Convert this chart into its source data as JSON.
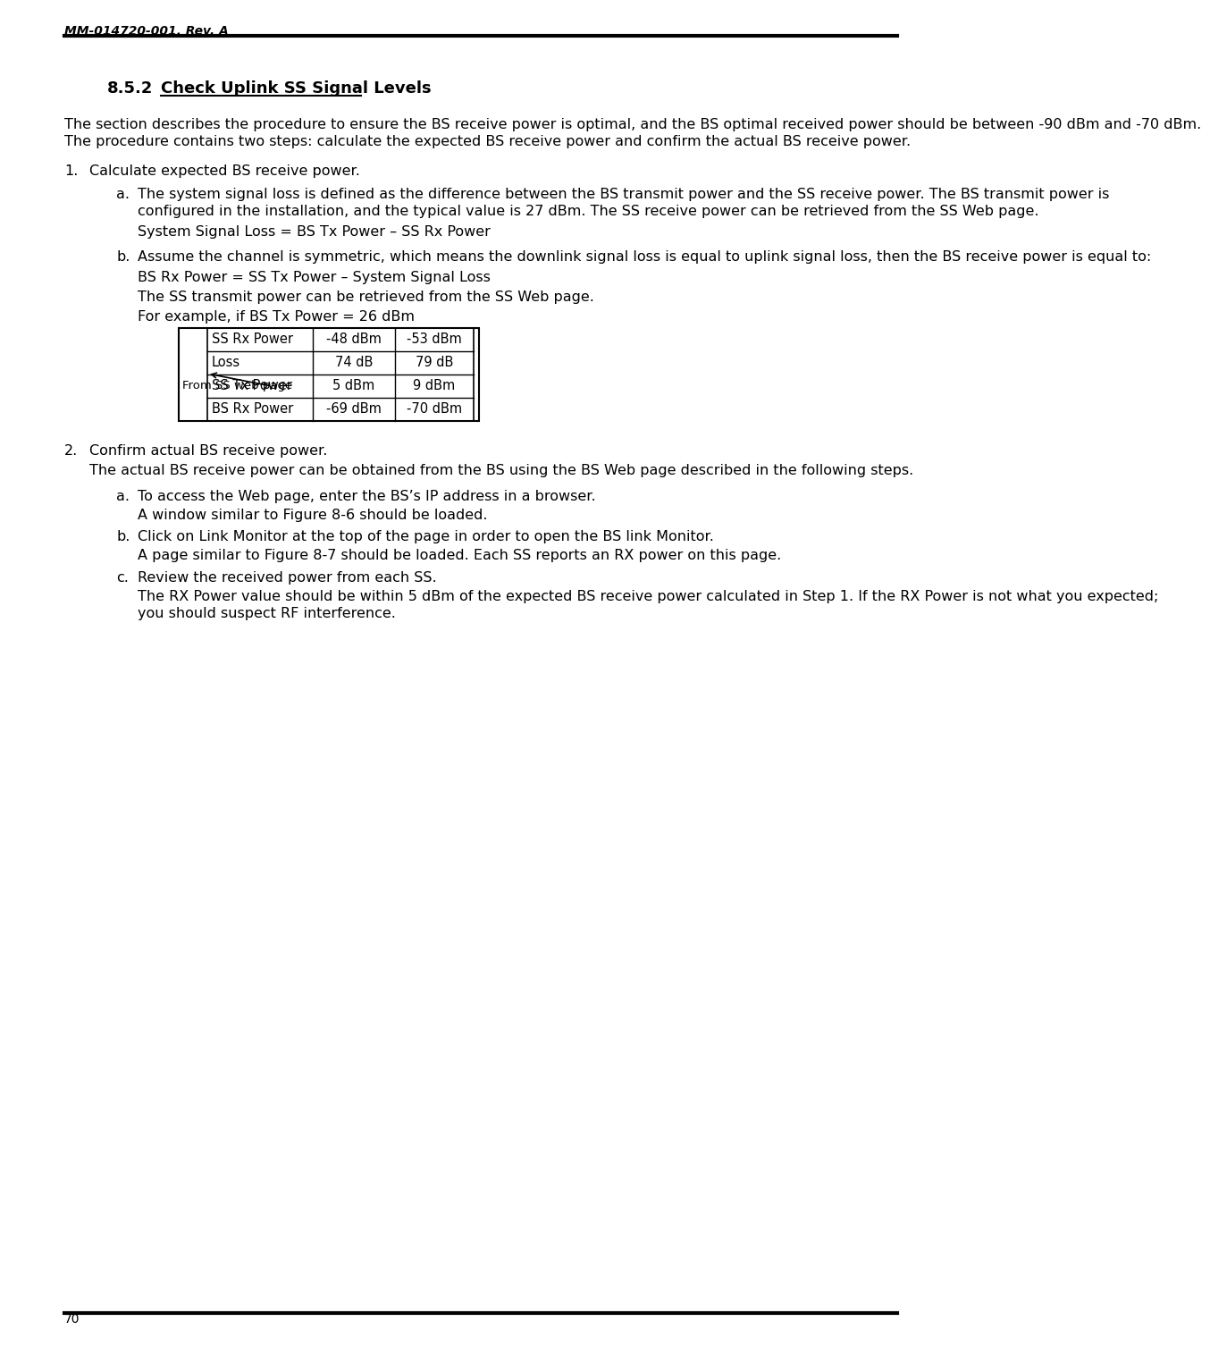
{
  "header_text": "MM-014720-001, Rev. A",
  "footer_text": "70",
  "bg_color": "#ffffff",
  "text_color": "#000000",
  "body_paragraph": "The section describes the procedure to ensure the BS receive power is optimal, and the BS optimal received power should be between -90 dBm and -70 dBm.  The procedure contains two steps: calculate the expected BS receive power and confirm the actual BS receive power.",
  "item1_text": "Calculate expected BS receive power.",
  "item1a_text": "The system signal loss is defined as the difference between the BS transmit power and the SS receive power.  The BS transmit power is configured in the installation, and the typical value is 27 dBm.  The SS receive power can be retrieved from the SS Web page.",
  "item1a_formula": "System Signal Loss = BS Tx Power – SS Rx Power",
  "item1b_text": "Assume the channel is symmetric, which means the downlink signal loss is equal to uplink signal loss, then the BS receive power is equal to:",
  "item1b_formula": "BS Rx Power = SS Tx Power – System Signal Loss",
  "item1b_extra1": "The SS transmit power can be retrieved from the SS Web page.",
  "item1b_extra2": "For example, if BS Tx Power = 26 dBm",
  "item2_text": "Confirm actual BS receive power.",
  "item2_intro": "The actual BS receive power can be obtained from the BS using the BS Web page described in the following steps.",
  "item2a_text": "To access the Web page, enter the BS’s IP address in a browser.",
  "item2a_extra": "A window similar to Figure 8-6 should be loaded.",
  "item2b_text": "Click on Link Monitor at the top of the page in order to open the BS link Monitor.",
  "item2b_extra": "A page similar to Figure 8-7 should be loaded.  Each SS reports an RX power on this page.",
  "item2c_text": "Review the received power from each SS.",
  "item2c_extra": "The RX Power value should be within 5 dBm of the expected BS receive power calculated in Step 1.  If the RX Power is not what you expected; you should suspect RF interference.",
  "table_rows": [
    [
      "SS Rx Power",
      "-48 dBm",
      "-53 dBm"
    ],
    [
      "Loss",
      "74 dB",
      "79 dB"
    ],
    [
      "SS Tx Power",
      "5 dBm",
      "9 dBm"
    ],
    [
      "BS Rx Power",
      "-69 dBm",
      "-70 dBm"
    ]
  ],
  "table_annotation": "From SS web page",
  "section_num": "8.5.2",
  "section_title": "Check Uplink SS Signal Levels"
}
